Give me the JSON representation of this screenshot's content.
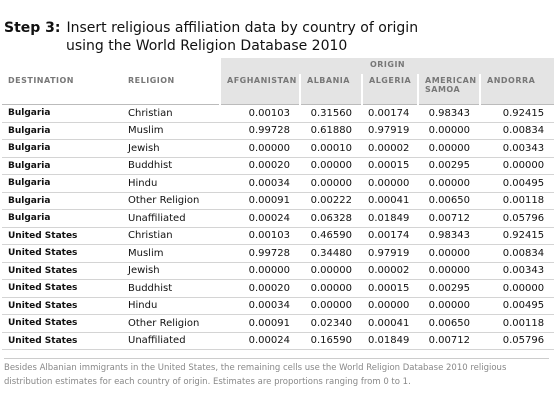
{
  "header": {
    "step": "Step 3:",
    "title_line1": "Insert religious affiliation data by country of origin",
    "title_line2": "using the World Religion Database 2010"
  },
  "table": {
    "group_label": "ORIGIN",
    "columns": [
      "DESTINATION",
      "RELIGION",
      "AFGHANISTAN",
      "ALBANIA",
      "ALGERIA",
      "AMERICAN SAMOA",
      "ANDORRA"
    ],
    "rows": [
      [
        "Bulgaria",
        "Christian",
        "0.00103",
        "0.31560",
        "0.00174",
        "0.98343",
        "0.92415"
      ],
      [
        "Bulgaria",
        "Muslim",
        "0.99728",
        "0.61880",
        "0.97919",
        "0.00000",
        "0.00834"
      ],
      [
        "Bulgaria",
        "Jewish",
        "0.00000",
        "0.00010",
        "0.00002",
        "0.00000",
        "0.00343"
      ],
      [
        "Bulgaria",
        "Buddhist",
        "0.00020",
        "0.00000",
        "0.00015",
        "0.00295",
        "0.00000"
      ],
      [
        "Bulgaria",
        "Hindu",
        "0.00034",
        "0.00000",
        "0.00000",
        "0.00000",
        "0.00495"
      ],
      [
        "Bulgaria",
        "Other Religion",
        "0.00091",
        "0.00222",
        "0.00041",
        "0.00650",
        "0.00118"
      ],
      [
        "Bulgaria",
        "Unaffiliated",
        "0.00024",
        "0.06328",
        "0.01849",
        "0.00712",
        "0.05796"
      ],
      [
        "United States",
        "Christian",
        "0.00103",
        "0.46590",
        "0.00174",
        "0.98343",
        "0.92415"
      ],
      [
        "United States",
        "Muslim",
        "0.99728",
        "0.34480",
        "0.97919",
        "0.00000",
        "0.00834"
      ],
      [
        "United States",
        "Jewish",
        "0.00000",
        "0.00000",
        "0.00002",
        "0.00000",
        "0.00343"
      ],
      [
        "United States",
        "Buddhist",
        "0.00020",
        "0.00000",
        "0.00015",
        "0.00295",
        "0.00000"
      ],
      [
        "United States",
        "Hindu",
        "0.00034",
        "0.00000",
        "0.00000",
        "0.00000",
        "0.00495"
      ],
      [
        "United States",
        "Other Religion",
        "0.00091",
        "0.02340",
        "0.00041",
        "0.00650",
        "0.00118"
      ],
      [
        "United States",
        "Unaffiliated",
        "0.00024",
        "0.16590",
        "0.01849",
        "0.00712",
        "0.05796"
      ]
    ]
  },
  "note": "Besides Albanian immigrants in the United States, the remaining cells use the World Religion Database 2010 religious distribution estimates for each country of origin. Estimates are proportions ranging from 0 to 1."
}
